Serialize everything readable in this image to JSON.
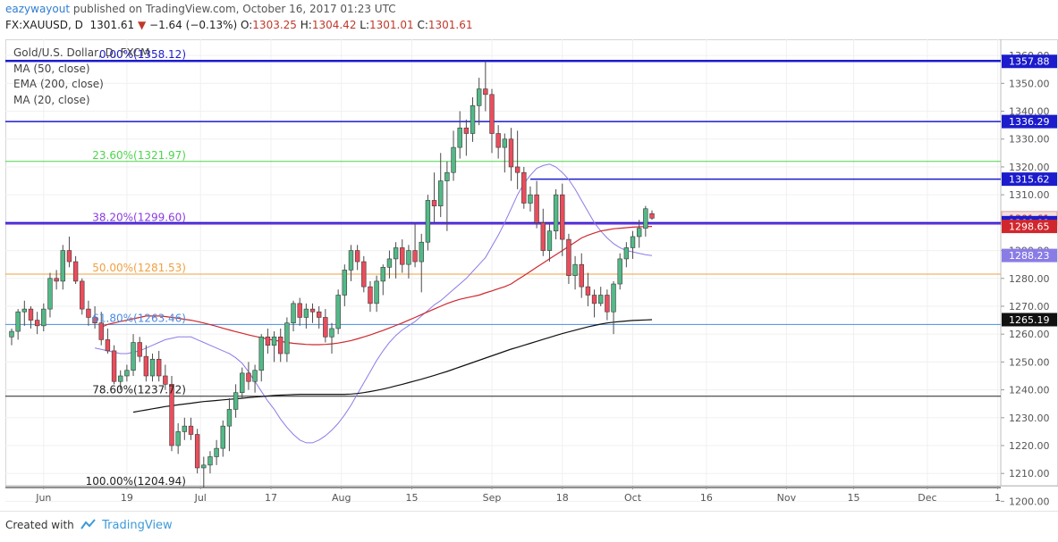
{
  "header": {
    "author": "eazywayout",
    "published_text": "published on TradingView.com, October 16, 2017 01:23 UTC",
    "symbol": "FX:XAUUSD, D",
    "last": "1301.61",
    "change_arrow": "▼",
    "change": "−1.64 (−0.13%)",
    "o_label": "O:",
    "o_value": "1303.25",
    "h_label": "H:",
    "h_value": "1304.42",
    "l_label": "L:",
    "l_value": "1301.01",
    "c_label": "C:",
    "c_value": "1301.61"
  },
  "legend": {
    "title": "Gold/U.S. Dollar, D, FXCM",
    "ma50": "MA (50, close)",
    "ema200": "EMA (200, close)",
    "ma20": "MA (20, close)"
  },
  "footer": {
    "created_with": "Created with",
    "brand": "TradingView"
  },
  "colors": {
    "up": "#53b987",
    "down": "#eb4d5c",
    "ma20": "#8a7ce6",
    "ma50": "#d0272d",
    "ema200": "#111111",
    "hline": "#1c1ccc",
    "fib0": "#1c1ccc",
    "fib236": "#4cd54c",
    "fib382": "#8c3be0",
    "fib50": "#f0a040",
    "fib618": "#4a8be0",
    "fib786": "#222222",
    "fib100": "#222222"
  },
  "chart_data": {
    "type": "candlestick",
    "title": "Gold/U.S. Dollar, D, FXCM",
    "ylim": [
      1195,
      1370
    ],
    "y_ticks": [
      1200,
      1210,
      1220,
      1230,
      1240,
      1250,
      1260,
      1270,
      1280,
      1290,
      1300,
      1310,
      1320,
      1330,
      1340,
      1350,
      1360
    ],
    "x_ticks": [
      "Jun",
      "19",
      "Jul",
      "17",
      "Aug",
      "15",
      "Sep",
      "18",
      "Oct",
      "16",
      "Nov",
      "15",
      "Dec",
      "1"
    ],
    "fibonacci": [
      {
        "label": "0.00%(1358.12)",
        "value": 1358.12
      },
      {
        "label": "23.60%(1321.97)",
        "value": 1321.97
      },
      {
        "label": "38.20%(1299.60)",
        "value": 1299.6
      },
      {
        "label": "50.00%(1281.53)",
        "value": 1281.53
      },
      {
        "label": "61.80%(1263.46)",
        "value": 1263.46
      },
      {
        "label": "78.60%(1237.72)",
        "value": 1237.72
      },
      {
        "label": "100.00%(1204.94)",
        "value": 1204.94
      }
    ],
    "horizontal_lines": [
      1357.88,
      1336.29,
      1315.62,
      1300.01
    ],
    "price_labels": [
      {
        "text": "1357.88",
        "value": 1357.88,
        "style": "blue"
      },
      {
        "text": "1336.29",
        "value": 1336.29,
        "style": "blue"
      },
      {
        "text": "1315.62",
        "value": 1315.62,
        "style": "blue"
      },
      {
        "text": "1301.61",
        "value": 1301.61,
        "style": "last"
      },
      {
        "text": "1300.01",
        "value": 1300.01,
        "style": "blue"
      },
      {
        "text": "1298.65",
        "value": 1298.65,
        "style": "red"
      },
      {
        "text": "1288.23",
        "value": 1288.23,
        "style": "purple"
      },
      {
        "text": "1265.19",
        "value": 1265.19,
        "style": "black"
      }
    ],
    "candles": [
      [
        1259,
        1262,
        1256,
        1261
      ],
      [
        1261,
        1269,
        1258,
        1268
      ],
      [
        1268,
        1272,
        1263,
        1269
      ],
      [
        1269,
        1270,
        1262,
        1265
      ],
      [
        1265,
        1268,
        1260,
        1263
      ],
      [
        1263,
        1271,
        1261,
        1269
      ],
      [
        1269,
        1282,
        1266,
        1280
      ],
      [
        1280,
        1283,
        1276,
        1279
      ],
      [
        1279,
        1292,
        1276,
        1290
      ],
      [
        1290,
        1295,
        1284,
        1286
      ],
      [
        1286,
        1288,
        1278,
        1279
      ],
      [
        1279,
        1280,
        1267,
        1269
      ],
      [
        1269,
        1272,
        1263,
        1266
      ],
      [
        1266,
        1270,
        1262,
        1264
      ],
      [
        1264,
        1268,
        1256,
        1258
      ],
      [
        1258,
        1262,
        1253,
        1254
      ],
      [
        1254,
        1256,
        1242,
        1243
      ],
      [
        1243,
        1247,
        1240,
        1245
      ],
      [
        1245,
        1249,
        1243,
        1247
      ],
      [
        1247,
        1260,
        1245,
        1257
      ],
      [
        1257,
        1259,
        1250,
        1252
      ],
      [
        1252,
        1256,
        1243,
        1245
      ],
      [
        1245,
        1253,
        1243,
        1251
      ],
      [
        1251,
        1254,
        1243,
        1245
      ],
      [
        1245,
        1249,
        1240,
        1242
      ],
      [
        1242,
        1245,
        1218,
        1220
      ],
      [
        1220,
        1228,
        1217,
        1225
      ],
      [
        1225,
        1230,
        1222,
        1227
      ],
      [
        1227,
        1230,
        1222,
        1224
      ],
      [
        1224,
        1226,
        1210,
        1212
      ],
      [
        1212,
        1216,
        1205,
        1213
      ],
      [
        1213,
        1218,
        1210,
        1216
      ],
      [
        1216,
        1222,
        1213,
        1219
      ],
      [
        1219,
        1229,
        1216,
        1227
      ],
      [
        1227,
        1237,
        1218,
        1233
      ],
      [
        1233,
        1242,
        1230,
        1239
      ],
      [
        1239,
        1248,
        1237,
        1246
      ],
      [
        1246,
        1250,
        1240,
        1243
      ],
      [
        1243,
        1249,
        1239,
        1247
      ],
      [
        1247,
        1260,
        1243,
        1259
      ],
      [
        1259,
        1262,
        1253,
        1256
      ],
      [
        1256,
        1261,
        1250,
        1259
      ],
      [
        1259,
        1262,
        1250,
        1253
      ],
      [
        1253,
        1266,
        1250,
        1264
      ],
      [
        1264,
        1272,
        1261,
        1271
      ],
      [
        1271,
        1273,
        1263,
        1266
      ],
      [
        1266,
        1271,
        1262,
        1269
      ],
      [
        1269,
        1271,
        1264,
        1268
      ],
      [
        1268,
        1270,
        1262,
        1266
      ],
      [
        1266,
        1269,
        1257,
        1259
      ],
      [
        1259,
        1264,
        1253,
        1262
      ],
      [
        1262,
        1276,
        1260,
        1274
      ],
      [
        1274,
        1285,
        1270,
        1283
      ],
      [
        1283,
        1292,
        1279,
        1290
      ],
      [
        1290,
        1292,
        1283,
        1286
      ],
      [
        1286,
        1288,
        1275,
        1277
      ],
      [
        1277,
        1279,
        1268,
        1271
      ],
      [
        1271,
        1281,
        1268,
        1279
      ],
      [
        1279,
        1285,
        1274,
        1284
      ],
      [
        1284,
        1290,
        1280,
        1287
      ],
      [
        1287,
        1293,
        1280,
        1291
      ],
      [
        1291,
        1294,
        1282,
        1285
      ],
      [
        1285,
        1292,
        1280,
        1290
      ],
      [
        1290,
        1300,
        1284,
        1286
      ],
      [
        1286,
        1296,
        1275,
        1293
      ],
      [
        1293,
        1310,
        1290,
        1308
      ],
      [
        1308,
        1318,
        1300,
        1306
      ],
      [
        1306,
        1325,
        1302,
        1315
      ],
      [
        1315,
        1322,
        1297,
        1318
      ],
      [
        1318,
        1333,
        1315,
        1327
      ],
      [
        1327,
        1340,
        1323,
        1334
      ],
      [
        1334,
        1337,
        1324,
        1332
      ],
      [
        1332,
        1345,
        1329,
        1342
      ],
      [
        1342,
        1352,
        1335,
        1348
      ],
      [
        1348,
        1358,
        1340,
        1346
      ],
      [
        1346,
        1348,
        1325,
        1332
      ],
      [
        1332,
        1335,
        1323,
        1327
      ],
      [
        1327,
        1332,
        1318,
        1330
      ],
      [
        1330,
        1334,
        1315,
        1320
      ],
      [
        1320,
        1333,
        1312,
        1318
      ],
      [
        1318,
        1320,
        1305,
        1307
      ],
      [
        1307,
        1313,
        1304,
        1310
      ],
      [
        1310,
        1315,
        1298,
        1300
      ],
      [
        1300,
        1305,
        1288,
        1290
      ],
      [
        1290,
        1300,
        1286,
        1297
      ],
      [
        1297,
        1312,
        1294,
        1310
      ],
      [
        1310,
        1314,
        1288,
        1294
      ],
      [
        1294,
        1296,
        1278,
        1281
      ],
      [
        1281,
        1288,
        1276,
        1285
      ],
      [
        1285,
        1289,
        1273,
        1277
      ],
      [
        1277,
        1282,
        1270,
        1274
      ],
      [
        1274,
        1276,
        1266,
        1271
      ],
      [
        1271,
        1277,
        1270,
        1274
      ],
      [
        1274,
        1276,
        1265,
        1268
      ],
      [
        1268,
        1279,
        1260,
        1278
      ],
      [
        1278,
        1289,
        1276,
        1287
      ],
      [
        1287,
        1293,
        1284,
        1291
      ],
      [
        1291,
        1297,
        1287,
        1295
      ],
      [
        1295,
        1301,
        1291,
        1298
      ],
      [
        1298,
        1306,
        1295,
        1305
      ],
      [
        1303.25,
        1304.42,
        1301.01,
        1301.61
      ]
    ],
    "ma20": [
      1255,
      1254.5,
      1254,
      1253.5,
      1253,
      1253,
      1253.5,
      1254,
      1255,
      1256,
      1257,
      1258,
      1258.5,
      1259,
      1259,
      1259,
      1258,
      1257,
      1256,
      1255,
      1254,
      1253,
      1251.5,
      1249.5,
      1246.5,
      1243,
      1239.5,
      1236,
      1233,
      1229.5,
      1226.5,
      1224,
      1222,
      1221,
      1221,
      1222,
      1223.5,
      1225.5,
      1228,
      1231,
      1234.5,
      1238.5,
      1242.5,
      1246.5,
      1250.5,
      1254,
      1257,
      1259.5,
      1261.5,
      1263,
      1264.5,
      1266.5,
      1268.5,
      1270.5,
      1272,
      1274,
      1276,
      1278,
      1280,
      1282.5,
      1285,
      1287.5,
      1291.5,
      1295.5,
      1300,
      1305,
      1310,
      1314,
      1317,
      1319.5,
      1320.5,
      1321,
      1320,
      1318,
      1315.5,
      1312,
      1308,
      1304,
      1300,
      1297,
      1294.5,
      1292.5,
      1291,
      1290,
      1289.5,
      1289,
      1288.5,
      1288.2
    ],
    "ma50": [
      1262.5,
      1263.5,
      1264,
      1264.5,
      1265,
      1265.5,
      1266,
      1266.5,
      1266.5,
      1266.5,
      1266.3,
      1266,
      1265.7,
      1265.3,
      1265,
      1264.5,
      1264,
      1263.4,
      1262.8,
      1262.1,
      1261.5,
      1260.9,
      1260.3,
      1259.7,
      1259.2,
      1258.7,
      1258.2,
      1257.8,
      1257.4,
      1257,
      1256.7,
      1256.5,
      1256.3,
      1256.2,
      1256.2,
      1256.3,
      1256.5,
      1256.8,
      1257.2,
      1257.7,
      1258.3,
      1259,
      1259.7,
      1260.5,
      1261.3,
      1262.2,
      1263.1,
      1264,
      1265,
      1266,
      1267,
      1268,
      1269,
      1270,
      1271,
      1271.8,
      1272.5,
      1273,
      1273.5,
      1274,
      1274.8,
      1275.5,
      1276.3,
      1277,
      1278,
      1279.5,
      1281,
      1282.5,
      1284,
      1285.5,
      1287,
      1288.5,
      1290,
      1291.5,
      1293,
      1294.5,
      1295.5,
      1296.3,
      1297,
      1297.4,
      1297.8,
      1298,
      1298.2,
      1298.4,
      1298.5,
      1298.6,
      1298.65
    ],
    "ema200": [
      1232,
      1232.4,
      1232.8,
      1233.2,
      1233.6,
      1234,
      1234.3,
      1234.6,
      1234.9,
      1235.2,
      1235.5,
      1235.8,
      1236,
      1236.2,
      1236.4,
      1236.6,
      1236.8,
      1237,
      1237.2,
      1237.4,
      1237.6,
      1237.8,
      1238,
      1238.1,
      1238.2,
      1238.3,
      1238.4,
      1238.4,
      1238.4,
      1238.4,
      1238.4,
      1238.4,
      1238.4,
      1238.4,
      1238.5,
      1238.7,
      1239,
      1239.4,
      1239.8,
      1240.3,
      1240.8,
      1241.4,
      1242,
      1242.6,
      1243.2,
      1243.8,
      1244.5,
      1245.2,
      1245.9,
      1246.6,
      1247.4,
      1248.2,
      1249,
      1249.8,
      1250.6,
      1251.4,
      1252.2,
      1253,
      1253.8,
      1254.6,
      1255.3,
      1256,
      1256.7,
      1257.4,
      1258.1,
      1258.8,
      1259.5,
      1260.2,
      1260.8,
      1261.4,
      1262,
      1262.6,
      1263.1,
      1263.6,
      1264,
      1264.3,
      1264.5,
      1264.7,
      1264.9,
      1265,
      1265.1,
      1265.19
    ]
  }
}
